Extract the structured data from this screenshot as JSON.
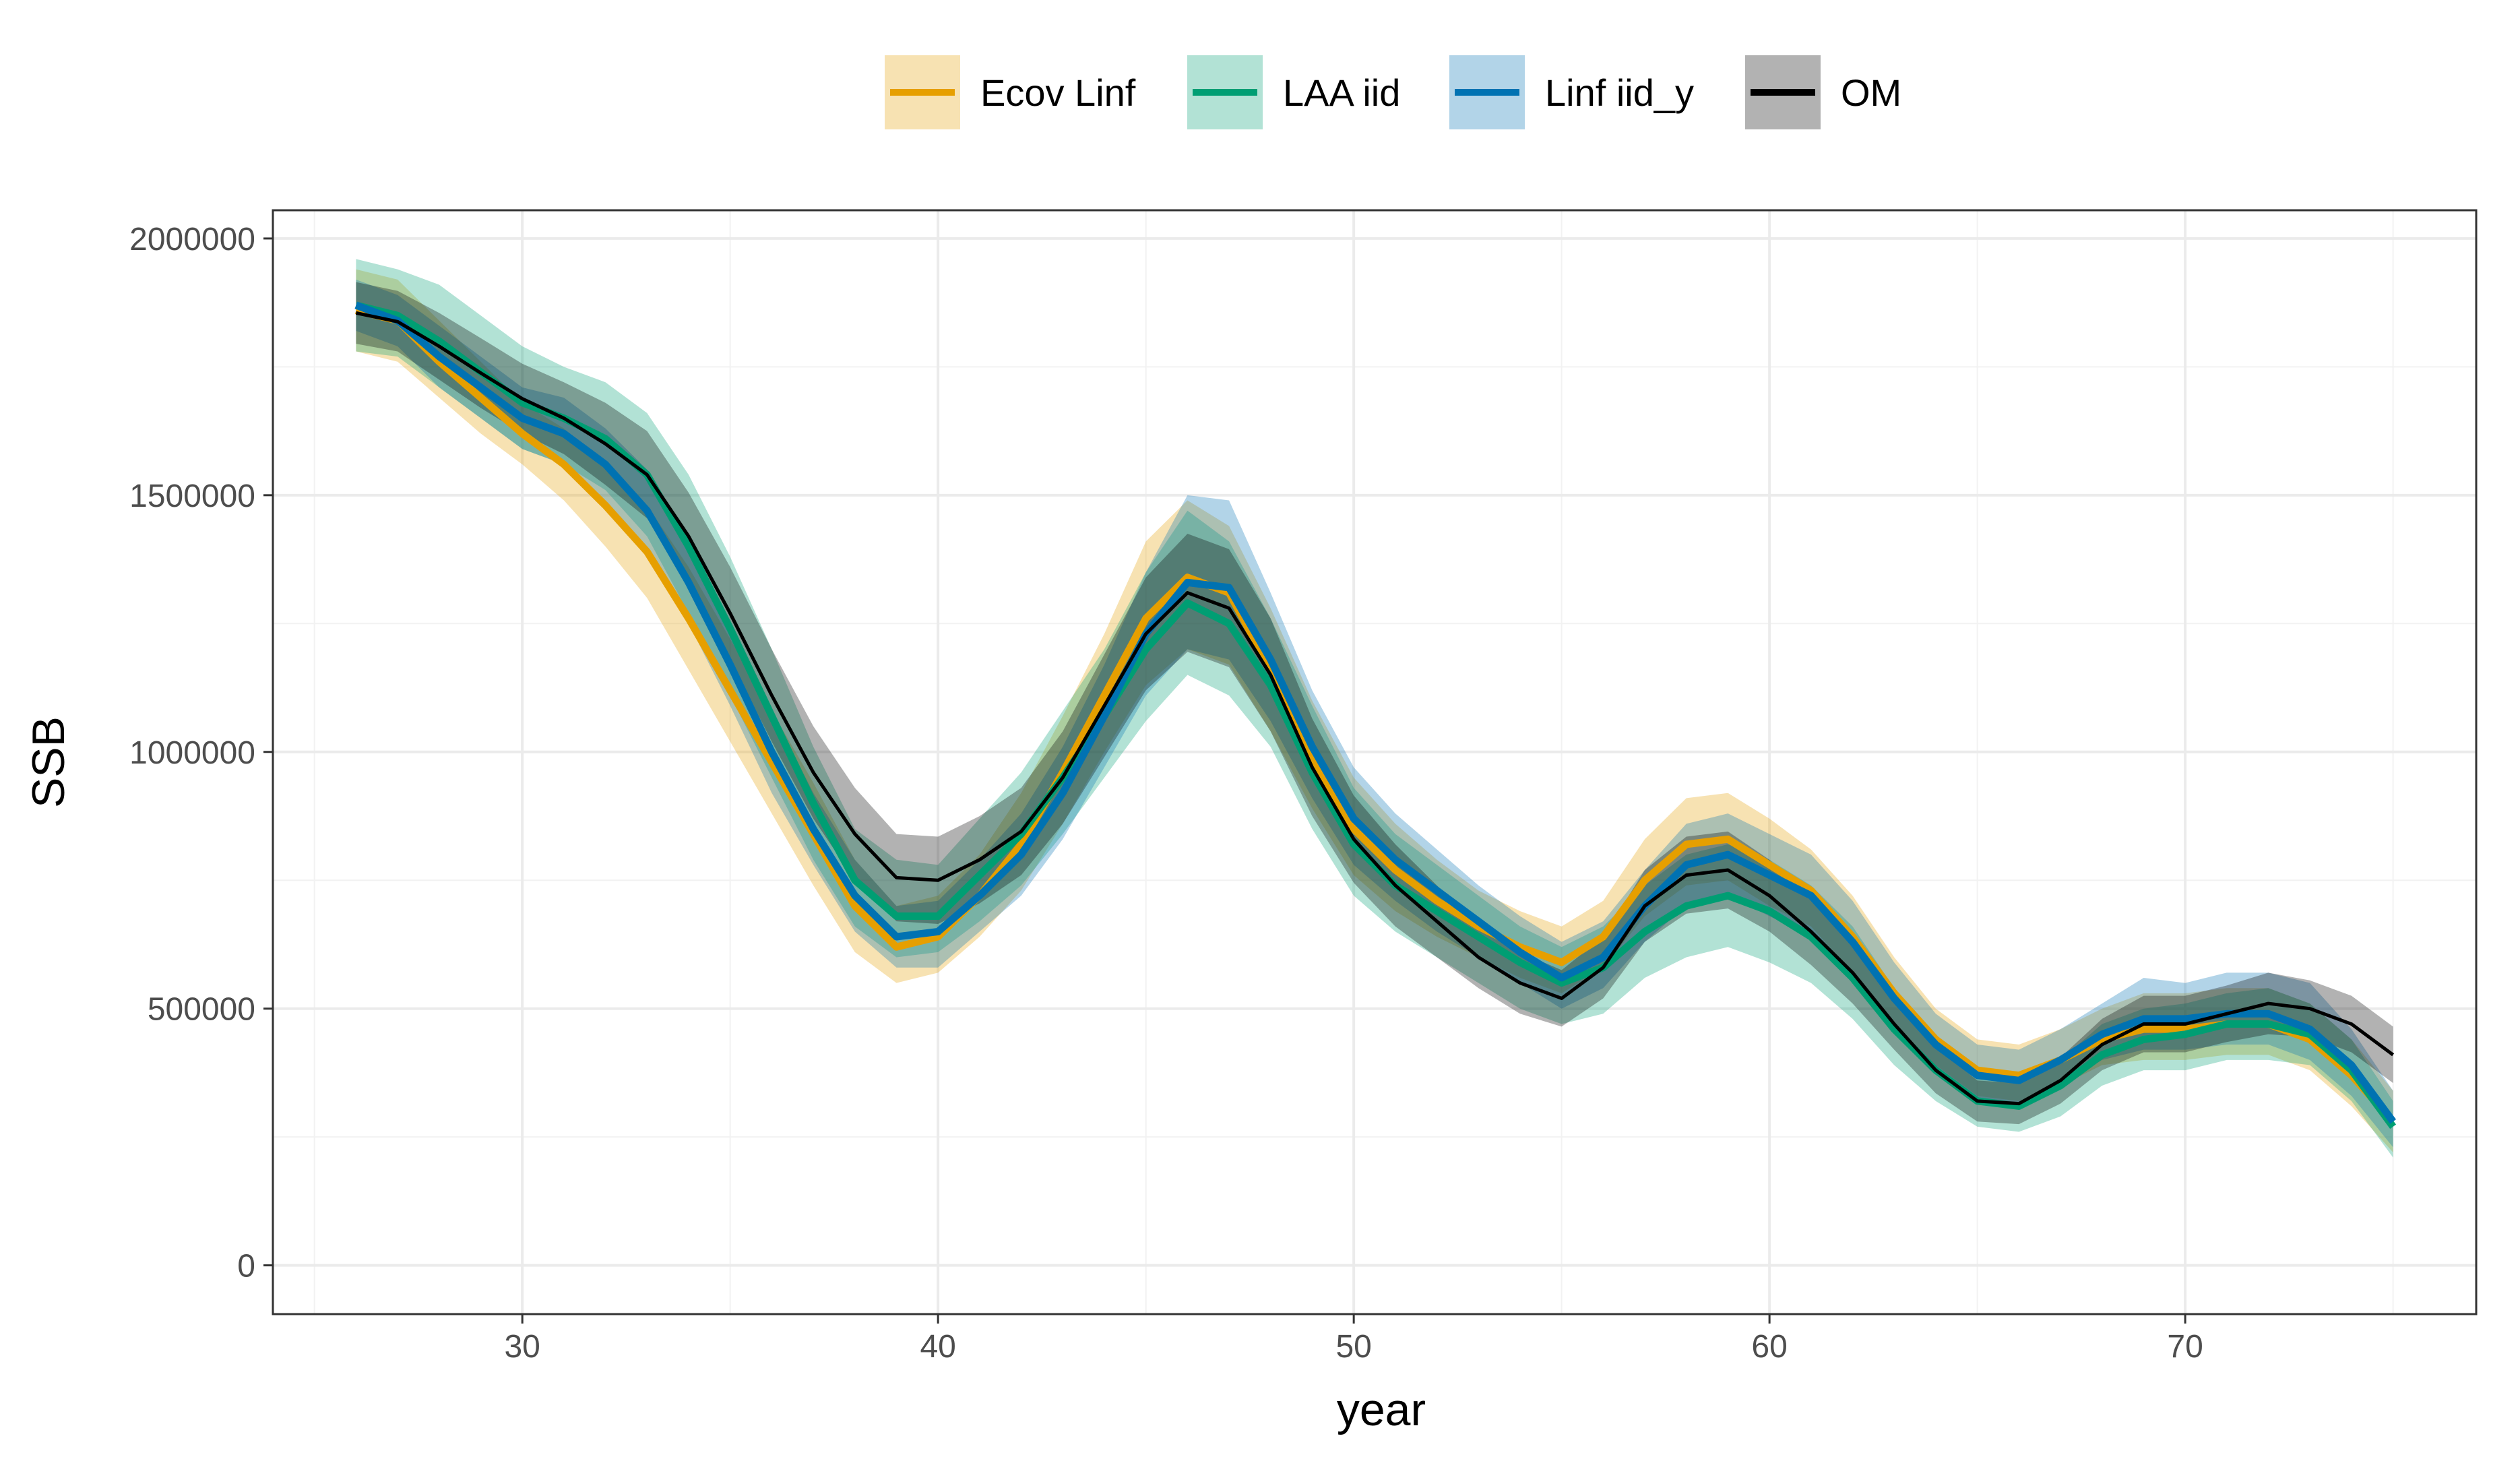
{
  "chart_data": {
    "type": "line",
    "title": "",
    "xlabel": "year",
    "ylabel": "SSB",
    "xlim": [
      24,
      77
    ],
    "ylim": [
      -95000,
      2055000
    ],
    "x_ticks": [
      30,
      40,
      50,
      60,
      70
    ],
    "x_tick_labels": [
      "30",
      "40",
      "50",
      "60",
      "70"
    ],
    "y_ticks": [
      0,
      500000,
      1000000,
      1500000,
      2000000
    ],
    "y_tick_labels": [
      "0",
      "500000",
      "1000000",
      "1500000",
      "2000000"
    ],
    "grid": true,
    "legend_position": "top",
    "x": [
      26,
      27,
      28,
      29,
      30,
      31,
      32,
      33,
      34,
      35,
      36,
      37,
      38,
      39,
      40,
      41,
      42,
      43,
      44,
      45,
      46,
      47,
      48,
      49,
      50,
      51,
      52,
      53,
      54,
      55,
      56,
      57,
      58,
      59,
      60,
      61,
      62,
      63,
      64,
      65,
      66,
      67,
      68,
      69,
      70,
      71,
      72,
      73,
      74,
      75
    ],
    "series": [
      {
        "name": "Ecov Linf",
        "color": "#E69F00",
        "values": [
          1860000,
          1840000,
          1760000,
          1690000,
          1620000,
          1560000,
          1480000,
          1390000,
          1260000,
          1120000,
          980000,
          840000,
          700000,
          620000,
          640000,
          720000,
          820000,
          960000,
          1110000,
          1260000,
          1340000,
          1310000,
          1160000,
          990000,
          850000,
          770000,
          710000,
          660000,
          620000,
          590000,
          640000,
          750000,
          820000,
          830000,
          780000,
          730000,
          640000,
          530000,
          440000,
          380000,
          370000,
          400000,
          440000,
          460000,
          460000,
          470000,
          470000,
          440000,
          370000,
          280000
        ],
        "lower": [
          1780000,
          1760000,
          1690000,
          1620000,
          1560000,
          1490000,
          1400000,
          1300000,
          1160000,
          1020000,
          880000,
          740000,
          610000,
          550000,
          570000,
          640000,
          730000,
          860000,
          1000000,
          1130000,
          1200000,
          1170000,
          1040000,
          890000,
          760000,
          690000,
          640000,
          600000,
          560000,
          530000,
          580000,
          680000,
          740000,
          750000,
          700000,
          660000,
          570000,
          470000,
          390000,
          330000,
          320000,
          350000,
          390000,
          400000,
          400000,
          410000,
          410000,
          380000,
          310000,
          220000
        ],
        "upper": [
          1940000,
          1920000,
          1840000,
          1760000,
          1680000,
          1630000,
          1560000,
          1480000,
          1360000,
          1220000,
          1080000,
          940000,
          790000,
          700000,
          720000,
          800000,
          920000,
          1070000,
          1230000,
          1410000,
          1490000,
          1440000,
          1280000,
          1100000,
          950000,
          860000,
          790000,
          730000,
          690000,
          660000,
          710000,
          830000,
          910000,
          920000,
          870000,
          810000,
          720000,
          600000,
          500000,
          440000,
          430000,
          460000,
          500000,
          530000,
          530000,
          540000,
          540000,
          510000,
          440000,
          340000
        ]
      },
      {
        "name": "LAA iid",
        "color": "#009E73",
        "values": [
          1870000,
          1850000,
          1800000,
          1740000,
          1680000,
          1650000,
          1610000,
          1540000,
          1400000,
          1240000,
          1070000,
          900000,
          750000,
          680000,
          680000,
          760000,
          840000,
          950000,
          1070000,
          1200000,
          1290000,
          1250000,
          1130000,
          960000,
          820000,
          740000,
          690000,
          640000,
          590000,
          550000,
          580000,
          650000,
          700000,
          720000,
          690000,
          640000,
          560000,
          460000,
          380000,
          320000,
          310000,
          350000,
          410000,
          440000,
          450000,
          470000,
          470000,
          450000,
          380000,
          270000
        ],
        "lower": [
          1780000,
          1770000,
          1710000,
          1650000,
          1590000,
          1560000,
          1510000,
          1420000,
          1270000,
          1110000,
          950000,
          790000,
          660000,
          600000,
          610000,
          670000,
          740000,
          840000,
          950000,
          1060000,
          1150000,
          1110000,
          1010000,
          850000,
          720000,
          650000,
          600000,
          550000,
          500000,
          470000,
          490000,
          560000,
          600000,
          620000,
          590000,
          550000,
          480000,
          390000,
          320000,
          270000,
          260000,
          290000,
          350000,
          380000,
          380000,
          400000,
          400000,
          390000,
          320000,
          210000
        ],
        "upper": [
          1960000,
          1940000,
          1910000,
          1850000,
          1790000,
          1750000,
          1720000,
          1660000,
          1540000,
          1380000,
          1200000,
          1010000,
          850000,
          790000,
          780000,
          870000,
          960000,
          1080000,
          1200000,
          1350000,
          1470000,
          1410000,
          1260000,
          1090000,
          930000,
          840000,
          780000,
          720000,
          660000,
          620000,
          660000,
          740000,
          800000,
          820000,
          790000,
          740000,
          660000,
          540000,
          440000,
          370000,
          360000,
          400000,
          470000,
          500000,
          510000,
          530000,
          540000,
          510000,
          440000,
          320000
        ]
      },
      {
        "name": "Linf iid_y",
        "color": "#0072B2",
        "values": [
          1870000,
          1840000,
          1770000,
          1710000,
          1650000,
          1620000,
          1560000,
          1470000,
          1330000,
          1170000,
          1000000,
          850000,
          720000,
          640000,
          650000,
          720000,
          800000,
          920000,
          1070000,
          1230000,
          1330000,
          1320000,
          1180000,
          1010000,
          870000,
          790000,
          730000,
          670000,
          610000,
          560000,
          600000,
          700000,
          780000,
          800000,
          760000,
          720000,
          630000,
          520000,
          430000,
          370000,
          360000,
          400000,
          450000,
          480000,
          480000,
          490000,
          490000,
          460000,
          390000,
          280000
        ],
        "lower": [
          1820000,
          1790000,
          1710000,
          1650000,
          1590000,
          1560000,
          1490000,
          1390000,
          1250000,
          1090000,
          920000,
          780000,
          650000,
          580000,
          580000,
          650000,
          720000,
          830000,
          970000,
          1110000,
          1200000,
          1180000,
          1060000,
          910000,
          780000,
          710000,
          650000,
          600000,
          550000,
          500000,
          540000,
          630000,
          700000,
          720000,
          680000,
          640000,
          560000,
          460000,
          380000,
          320000,
          310000,
          350000,
          400000,
          420000,
          420000,
          430000,
          430000,
          400000,
          330000,
          230000
        ],
        "upper": [
          1920000,
          1890000,
          1830000,
          1770000,
          1710000,
          1690000,
          1630000,
          1550000,
          1410000,
          1250000,
          1080000,
          920000,
          790000,
          700000,
          710000,
          790000,
          880000,
          1010000,
          1170000,
          1350000,
          1500000,
          1490000,
          1310000,
          1120000,
          970000,
          880000,
          810000,
          740000,
          680000,
          630000,
          670000,
          770000,
          860000,
          880000,
          840000,
          800000,
          710000,
          590000,
          490000,
          430000,
          420000,
          460000,
          510000,
          560000,
          550000,
          570000,
          570000,
          550000,
          460000,
          340000
        ]
      },
      {
        "name": "OM",
        "color": "#000000",
        "values": [
          1855000,
          1838000,
          1790000,
          1738000,
          1688000,
          1650000,
          1600000,
          1540000,
          1420000,
          1270000,
          1110000,
          960000,
          840000,
          755000,
          750000,
          790000,
          845000,
          950000,
          1090000,
          1230000,
          1310000,
          1280000,
          1150000,
          970000,
          830000,
          740000,
          670000,
          600000,
          550000,
          520000,
          580000,
          700000,
          760000,
          770000,
          720000,
          650000,
          570000,
          470000,
          380000,
          320000,
          315000,
          360000,
          430000,
          470000,
          470000,
          490000,
          510000,
          500000,
          470000,
          410000
        ],
        "lower": [
          1795000,
          1780000,
          1725000,
          1670000,
          1620000,
          1580000,
          1520000,
          1455000,
          1335000,
          1180000,
          1020000,
          870000,
          750000,
          670000,
          665000,
          705000,
          760000,
          860000,
          990000,
          1120000,
          1195000,
          1165000,
          1040000,
          875000,
          745000,
          660000,
          600000,
          540000,
          490000,
          465000,
          520000,
          630000,
          685000,
          695000,
          650000,
          585000,
          510000,
          420000,
          335000,
          280000,
          275000,
          315000,
          380000,
          415000,
          415000,
          435000,
          450000,
          445000,
          415000,
          355000
        ],
        "upper": [
          1915000,
          1898000,
          1855000,
          1806000,
          1756000,
          1720000,
          1680000,
          1625000,
          1505000,
          1360000,
          1200000,
          1050000,
          930000,
          840000,
          835000,
          875000,
          930000,
          1040000,
          1190000,
          1340000,
          1425000,
          1395000,
          1260000,
          1065000,
          915000,
          820000,
          740000,
          660000,
          610000,
          575000,
          640000,
          770000,
          835000,
          845000,
          790000,
          715000,
          630000,
          520000,
          425000,
          360000,
          355000,
          405000,
          480000,
          525000,
          525000,
          545000,
          570000,
          555000,
          525000,
          465000
        ]
      }
    ]
  }
}
